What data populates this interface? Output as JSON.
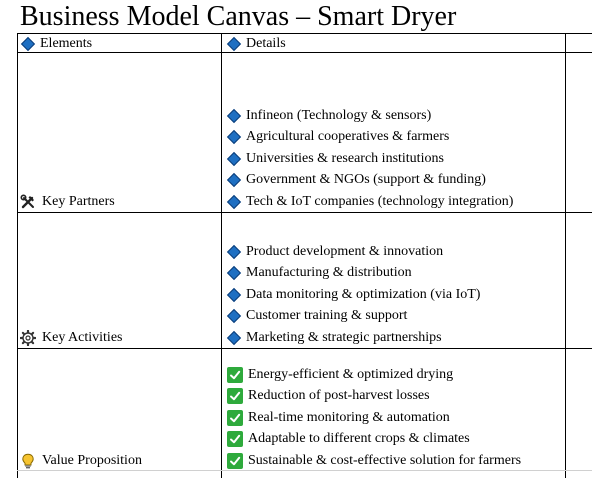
{
  "title": "Business Model Canvas – Smart Dryer",
  "headers": {
    "elements": "Elements",
    "details": "Details"
  },
  "sections": [
    {
      "label": "Key Partners",
      "icon": "tools-icon",
      "bullet": "diamond",
      "items": [
        "Infineon (Technology & sensors)",
        "Agricultural cooperatives & farmers",
        "Universities & research institutions",
        "Government & NGOs (support & funding)",
        "Tech & IoT companies (technology integration)"
      ]
    },
    {
      "label": "Key Activities",
      "icon": "gear-icon",
      "bullet": "diamond",
      "items": [
        "Product development & innovation",
        "Manufacturing & distribution",
        "Data monitoring & optimization (via IoT)",
        "Customer training & support",
        "Marketing & strategic partnerships"
      ]
    },
    {
      "label": "Value Proposition",
      "icon": "lightbulb-icon",
      "bullet": "checkmark",
      "items": [
        "Energy-efficient & optimized drying",
        "Reduction of post-harvest losses",
        "Real-time monitoring & automation",
        "Adaptable to different crops & climates",
        "Sustainable & cost-effective solution for farmers"
      ]
    }
  ],
  "colors": {
    "diamond": "#1e6fc2",
    "check": "#2eaa3c"
  }
}
